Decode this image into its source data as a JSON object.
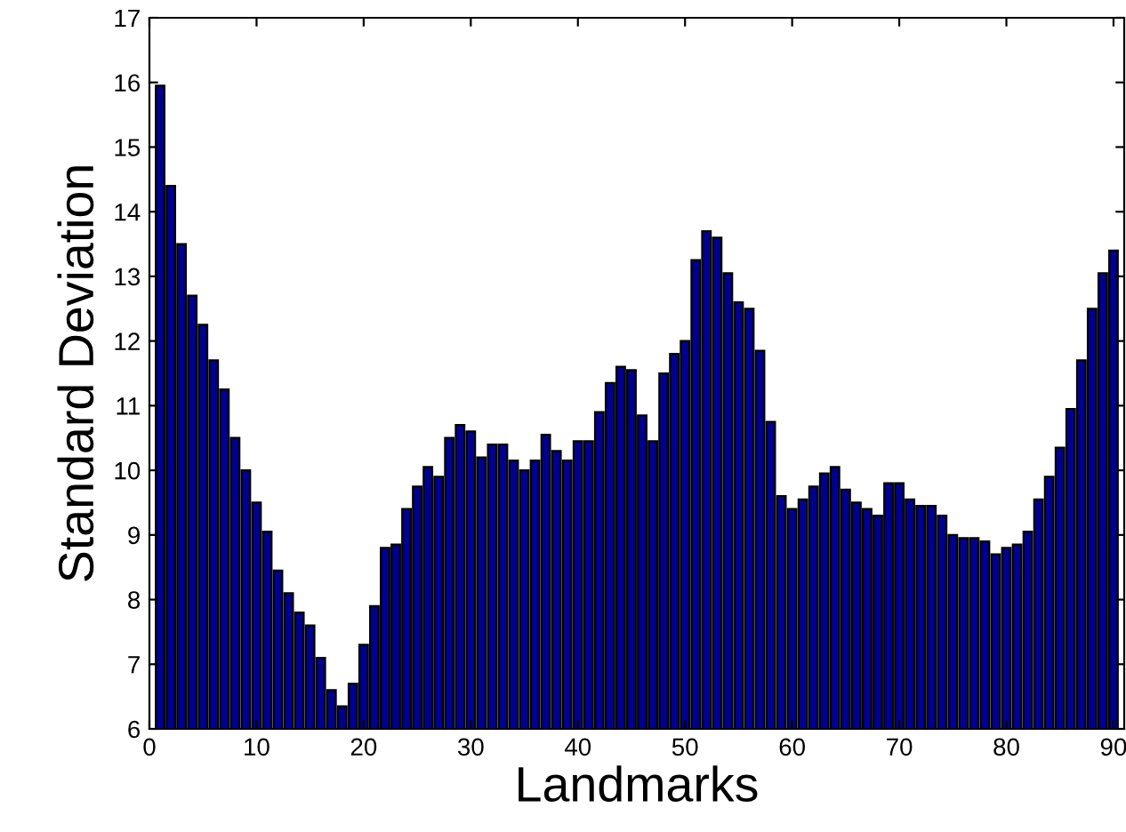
{
  "chart_data": {
    "type": "bar",
    "xlabel": "Landmarks",
    "ylabel": "Standard Deviation",
    "x": [
      1,
      2,
      3,
      4,
      5,
      6,
      7,
      8,
      9,
      10,
      11,
      12,
      13,
      14,
      15,
      16,
      17,
      18,
      19,
      20,
      21,
      22,
      23,
      24,
      25,
      26,
      27,
      28,
      29,
      30,
      31,
      32,
      33,
      34,
      35,
      36,
      37,
      38,
      39,
      40,
      41,
      42,
      43,
      44,
      45,
      46,
      47,
      48,
      49,
      50,
      51,
      52,
      53,
      54,
      55,
      56,
      57,
      58,
      59,
      60,
      61,
      62,
      63,
      64,
      65,
      66,
      67,
      68,
      69,
      70,
      71,
      72,
      73,
      74,
      75,
      76,
      77,
      78,
      79,
      80,
      81,
      82,
      83,
      84,
      85,
      86,
      87,
      88,
      89,
      90
    ],
    "values": [
      15.95,
      14.4,
      13.5,
      12.7,
      12.25,
      11.7,
      11.25,
      10.5,
      10.0,
      9.5,
      9.05,
      8.45,
      8.1,
      7.8,
      7.6,
      7.1,
      6.6,
      6.35,
      6.7,
      7.3,
      7.9,
      8.8,
      8.85,
      9.4,
      9.75,
      10.05,
      9.9,
      10.5,
      10.7,
      10.6,
      10.2,
      10.4,
      10.4,
      10.15,
      10.0,
      10.15,
      10.55,
      10.3,
      10.15,
      10.45,
      10.45,
      10.9,
      11.35,
      11.6,
      11.55,
      10.85,
      10.45,
      11.5,
      11.8,
      12.0,
      13.25,
      13.7,
      13.6,
      13.05,
      12.6,
      12.5,
      11.85,
      10.75,
      9.6,
      9.4,
      9.55,
      9.75,
      9.95,
      10.05,
      9.7,
      9.5,
      9.4,
      9.3,
      9.8,
      9.8,
      9.55,
      9.45,
      9.45,
      9.3,
      9.0,
      8.95,
      8.95,
      8.9,
      8.7,
      8.8,
      8.85,
      9.05,
      9.55,
      9.9,
      10.35,
      10.95,
      11.7,
      12.5,
      13.05,
      13.4
    ],
    "color": "#00008f",
    "xlim": [
      0,
      91
    ],
    "xticks": [
      0,
      10,
      20,
      30,
      40,
      50,
      60,
      70,
      80,
      90
    ],
    "ylim": [
      6,
      17
    ],
    "yticks": [
      6,
      7,
      8,
      9,
      10,
      11,
      12,
      13,
      14,
      15,
      16,
      17
    ],
    "grid": false,
    "legend": false
  }
}
